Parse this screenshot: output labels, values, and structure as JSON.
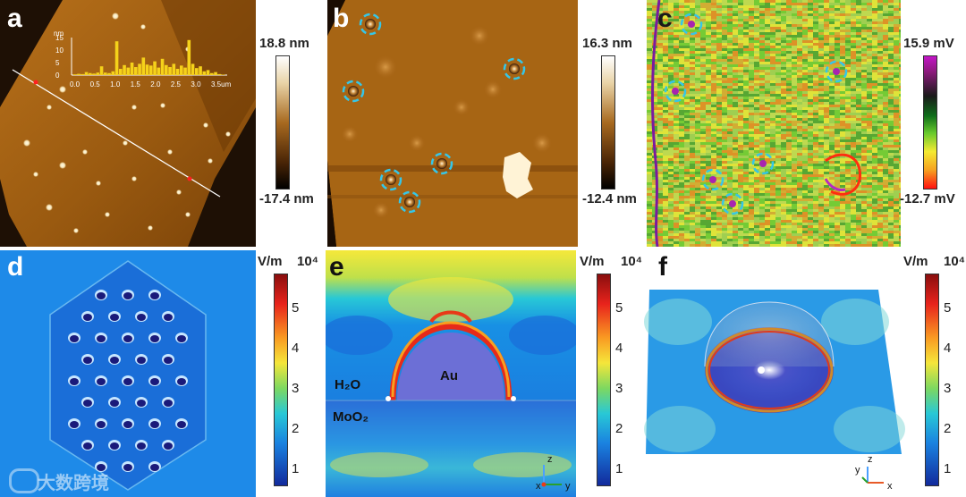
{
  "panels": {
    "a": {
      "label": "a",
      "scale_max": "18.8 nm",
      "scale_min": "-17.4 nm",
      "inset": {
        "y_unit": "nm",
        "y_ticks": [
          "15",
          "10",
          "5",
          "0"
        ],
        "x_ticks": [
          "0.0",
          "0.5",
          "1.0",
          "1.5",
          "2.0",
          "2.5",
          "3.0",
          "3.5um"
        ],
        "profile_nm": [
          0.3,
          0.5,
          0.4,
          1.2,
          0.8,
          0.6,
          1.0,
          3.5,
          1.0,
          0.8,
          1.5,
          13.5,
          2.5,
          4.0,
          3.0,
          5.0,
          3.2,
          4.5,
          7.0,
          4.2,
          3.8,
          5.5,
          3.0,
          6.5,
          4.0,
          3.2,
          4.5,
          2.5,
          3.8,
          3.0,
          14.0,
          4.5,
          2.8,
          3.5,
          1.5,
          2.0,
          0.8,
          1.2,
          0.4,
          0.2
        ]
      }
    },
    "b": {
      "label": "b",
      "scale_max": "16.3 nm",
      "scale_min": "-12.4 nm",
      "marked_particles": 6
    },
    "c": {
      "label": "c",
      "scale_max": "15.9 mV",
      "scale_min": "-12.7 mV",
      "marked_particles": 6
    },
    "d": {
      "label": "d",
      "unit": "V/m",
      "exponent": "10⁴",
      "ticks": [
        "5",
        "4",
        "3",
        "2",
        "1"
      ]
    },
    "e": {
      "label": "e",
      "unit": "V/m",
      "exponent": "10⁴",
      "ticks": [
        "5",
        "4",
        "3",
        "2",
        "1"
      ],
      "material_top": "H₂O",
      "material_bottom": "MoO₂",
      "particle": "Au",
      "axis_z": "z",
      "axis_x": "x",
      "axis_y": "y"
    },
    "f": {
      "label": "f",
      "unit": "V/m",
      "exponent": "10⁴",
      "ticks": [
        "5",
        "4",
        "3",
        "2",
        "1"
      ],
      "axis_z": "z",
      "axis_y": "y",
      "axis_x": "x"
    }
  },
  "watermark": "大数跨境",
  "colors": {
    "afm_dark": "#1a0d02",
    "afm_mid": "#8a4a0c",
    "afm_light": "#f5e3b8",
    "marker_cyan": "#35c6e8",
    "field_blue": "#1f7fe0"
  }
}
